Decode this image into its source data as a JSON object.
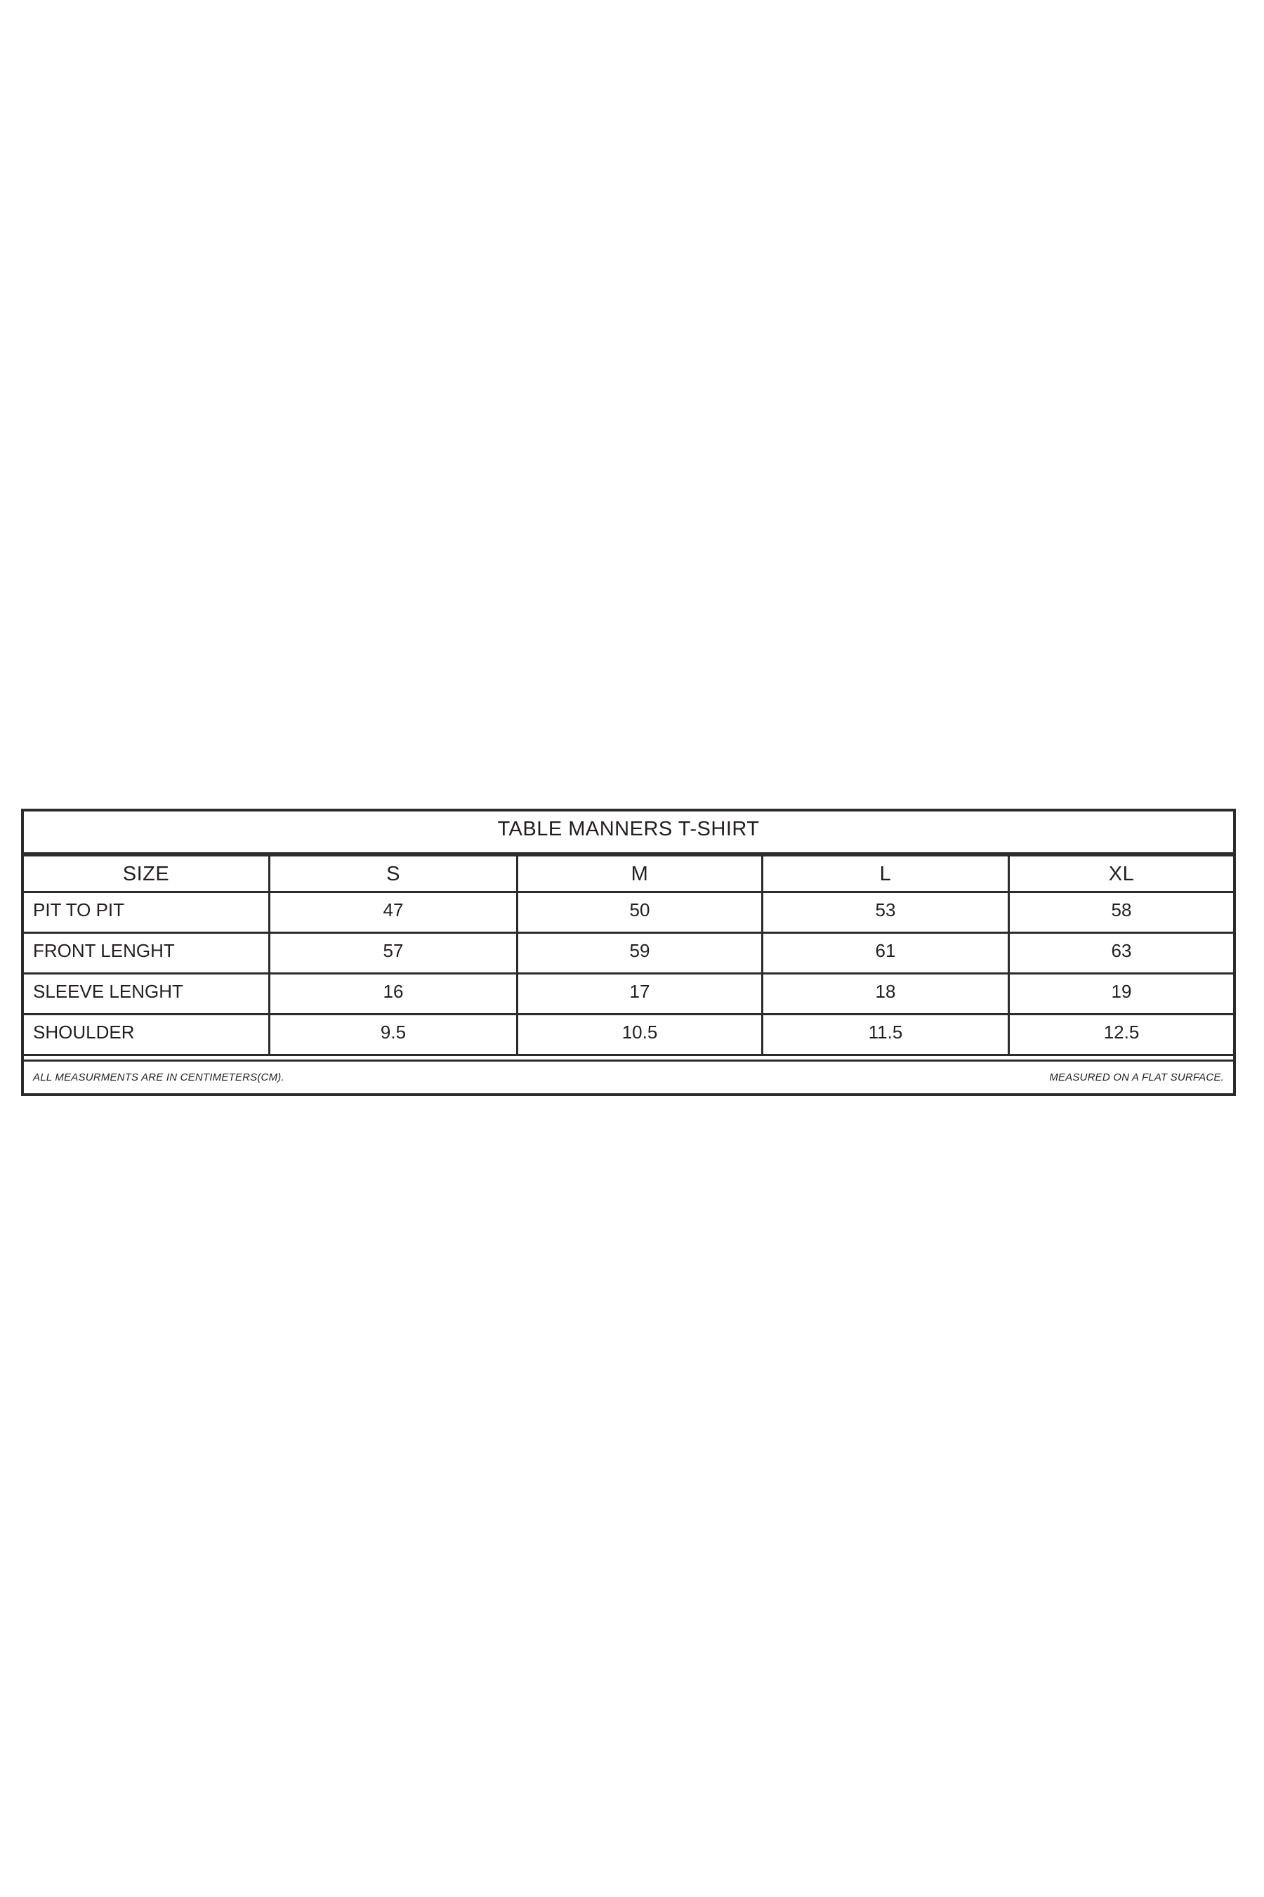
{
  "page": {
    "background_color": "#ffffff"
  },
  "table": {
    "title": "TABLE MANNERS T-SHIRT",
    "header": [
      "SIZE",
      "S",
      "M",
      "L",
      "XL"
    ],
    "rows": [
      {
        "label": "PIT TO PIT",
        "values": [
          "47",
          "50",
          "53",
          "58"
        ]
      },
      {
        "label": "FRONT LENGHT",
        "values": [
          "57",
          "59",
          "61",
          "63"
        ]
      },
      {
        "label": "SLEEVE LENGHT",
        "values": [
          "16",
          "17",
          "18",
          "19"
        ]
      },
      {
        "label": "SHOULDER",
        "values": [
          "9.5",
          "10.5",
          "11.5",
          "12.5"
        ]
      }
    ],
    "notes": {
      "left": "ALL MEASURMENTS ARE IN CENTIMETERS(CM).",
      "right": "MEASURED ON A FLAT SURFACE."
    },
    "colors": {
      "border": "#2b2b2b",
      "text": "#231f20"
    }
  }
}
